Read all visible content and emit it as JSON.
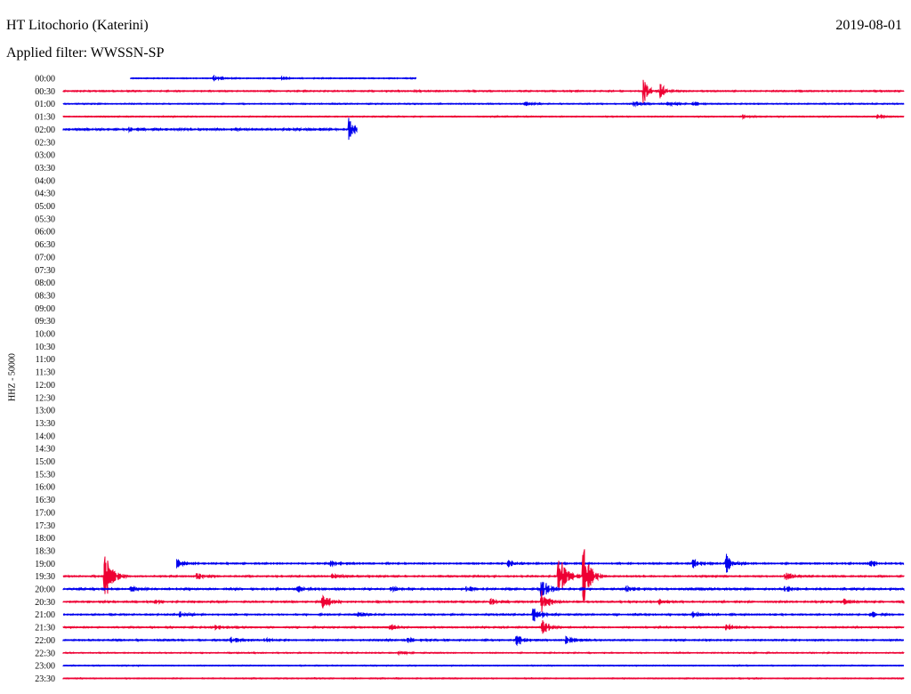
{
  "header": {
    "station": "HT Litochorio (Katerini)",
    "date": "2019-08-01",
    "filter": "Applied filter: WWSSN-SP"
  },
  "chart_data": {
    "type": "line",
    "title": "HT Litochorio (Katerini)",
    "subtitle": "Applied filter: WWSSN-SP",
    "ylabel": "HHZ - 50000",
    "colors": [
      "#0000ee",
      "#ee0033"
    ],
    "series": [
      {
        "name": "00:00",
        "trace": [
          0.08,
          0.42
        ],
        "noise": 1.0,
        "events": [
          [
            0.18,
            3
          ],
          [
            0.26,
            1.5
          ]
        ]
      },
      {
        "name": "00:30",
        "trace": [
          0,
          1
        ],
        "noise": 1.2,
        "events": [
          [
            0.42,
            1.5
          ],
          [
            0.69,
            14
          ],
          [
            0.71,
            8
          ]
        ]
      },
      {
        "name": "01:00",
        "trace": [
          0,
          1
        ],
        "noise": 1.0,
        "events": [
          [
            0.55,
            2
          ],
          [
            0.68,
            3
          ],
          [
            0.72,
            4
          ],
          [
            0.75,
            3
          ]
        ]
      },
      {
        "name": "01:30",
        "trace": [
          0,
          1
        ],
        "noise": 1.0,
        "events": [
          [
            0.81,
            2
          ],
          [
            0.97,
            2
          ]
        ]
      },
      {
        "name": "02:00",
        "trace": [
          0,
          0.35
        ],
        "noise": 1.8,
        "events": [
          [
            0.08,
            2
          ],
          [
            0.34,
            12
          ]
        ]
      },
      {
        "name": "02:30",
        "trace": []
      },
      {
        "name": "03:00",
        "trace": []
      },
      {
        "name": "03:30",
        "trace": []
      },
      {
        "name": "04:00",
        "trace": []
      },
      {
        "name": "04:30",
        "trace": []
      },
      {
        "name": "05:00",
        "trace": []
      },
      {
        "name": "05:30",
        "trace": []
      },
      {
        "name": "06:00",
        "trace": []
      },
      {
        "name": "06:30",
        "trace": []
      },
      {
        "name": "07:00",
        "trace": []
      },
      {
        "name": "07:30",
        "trace": []
      },
      {
        "name": "08:00",
        "trace": []
      },
      {
        "name": "08:30",
        "trace": []
      },
      {
        "name": "09:00",
        "trace": []
      },
      {
        "name": "09:30",
        "trace": []
      },
      {
        "name": "10:00",
        "trace": []
      },
      {
        "name": "10:30",
        "trace": []
      },
      {
        "name": "11:00",
        "trace": []
      },
      {
        "name": "11:30",
        "trace": []
      },
      {
        "name": "12:00",
        "trace": []
      },
      {
        "name": "12:30",
        "trace": []
      },
      {
        "name": "13:00",
        "trace": []
      },
      {
        "name": "13:30",
        "trace": []
      },
      {
        "name": "14:00",
        "trace": []
      },
      {
        "name": "14:30",
        "trace": []
      },
      {
        "name": "15:00",
        "trace": []
      },
      {
        "name": "15:30",
        "trace": []
      },
      {
        "name": "16:00",
        "trace": []
      },
      {
        "name": "16:30",
        "trace": []
      },
      {
        "name": "17:00",
        "trace": []
      },
      {
        "name": "17:30",
        "trace": []
      },
      {
        "name": "18:00",
        "trace": []
      },
      {
        "name": "18:30",
        "trace": []
      },
      {
        "name": "19:00",
        "trace": [
          0.135,
          1
        ],
        "noise": 1.4,
        "events": [
          [
            0.135,
            5
          ],
          [
            0.32,
            4
          ],
          [
            0.53,
            4
          ],
          [
            0.75,
            4
          ],
          [
            0.79,
            10
          ],
          [
            0.96,
            4
          ]
        ]
      },
      {
        "name": "19:30",
        "trace": [
          0,
          1
        ],
        "noise": 1.4,
        "events": [
          [
            0.05,
            30
          ],
          [
            0.16,
            4
          ],
          [
            0.32,
            3
          ],
          [
            0.59,
            26
          ],
          [
            0.62,
            30
          ],
          [
            0.86,
            4
          ]
        ]
      },
      {
        "name": "20:00",
        "trace": [
          0,
          1
        ],
        "noise": 1.6,
        "events": [
          [
            0.08,
            3
          ],
          [
            0.28,
            3
          ],
          [
            0.39,
            3
          ],
          [
            0.48,
            3
          ],
          [
            0.57,
            14
          ],
          [
            0.67,
            3
          ],
          [
            0.86,
            3
          ]
        ]
      },
      {
        "name": "20:30",
        "trace": [
          0,
          1
        ],
        "noise": 1.5,
        "events": [
          [
            0.11,
            3
          ],
          [
            0.31,
            8
          ],
          [
            0.51,
            3
          ],
          [
            0.57,
            12
          ],
          [
            0.71,
            3
          ],
          [
            0.93,
            3
          ]
        ]
      },
      {
        "name": "21:00",
        "trace": [
          0,
          1
        ],
        "noise": 1.4,
        "events": [
          [
            0.14,
            3
          ],
          [
            0.35,
            3
          ],
          [
            0.56,
            10
          ],
          [
            0.75,
            3
          ],
          [
            0.96,
            3
          ]
        ]
      },
      {
        "name": "21:30",
        "trace": [
          0,
          1
        ],
        "noise": 1.3,
        "events": [
          [
            0.18,
            3
          ],
          [
            0.39,
            3
          ],
          [
            0.57,
            10
          ],
          [
            0.79,
            3
          ]
        ]
      },
      {
        "name": "22:00",
        "trace": [
          0,
          1
        ],
        "noise": 1.4,
        "events": [
          [
            0.2,
            3
          ],
          [
            0.24,
            3
          ],
          [
            0.41,
            3
          ],
          [
            0.54,
            6
          ],
          [
            0.6,
            4
          ]
        ]
      },
      {
        "name": "22:30",
        "trace": [
          0,
          1
        ],
        "noise": 1.0,
        "events": [
          [
            0.4,
            2
          ]
        ]
      },
      {
        "name": "23:00",
        "trace": [
          0,
          1
        ],
        "noise": 0.9,
        "events": []
      },
      {
        "name": "23:30",
        "trace": [
          0,
          1
        ],
        "noise": 0.9,
        "events": []
      }
    ]
  }
}
